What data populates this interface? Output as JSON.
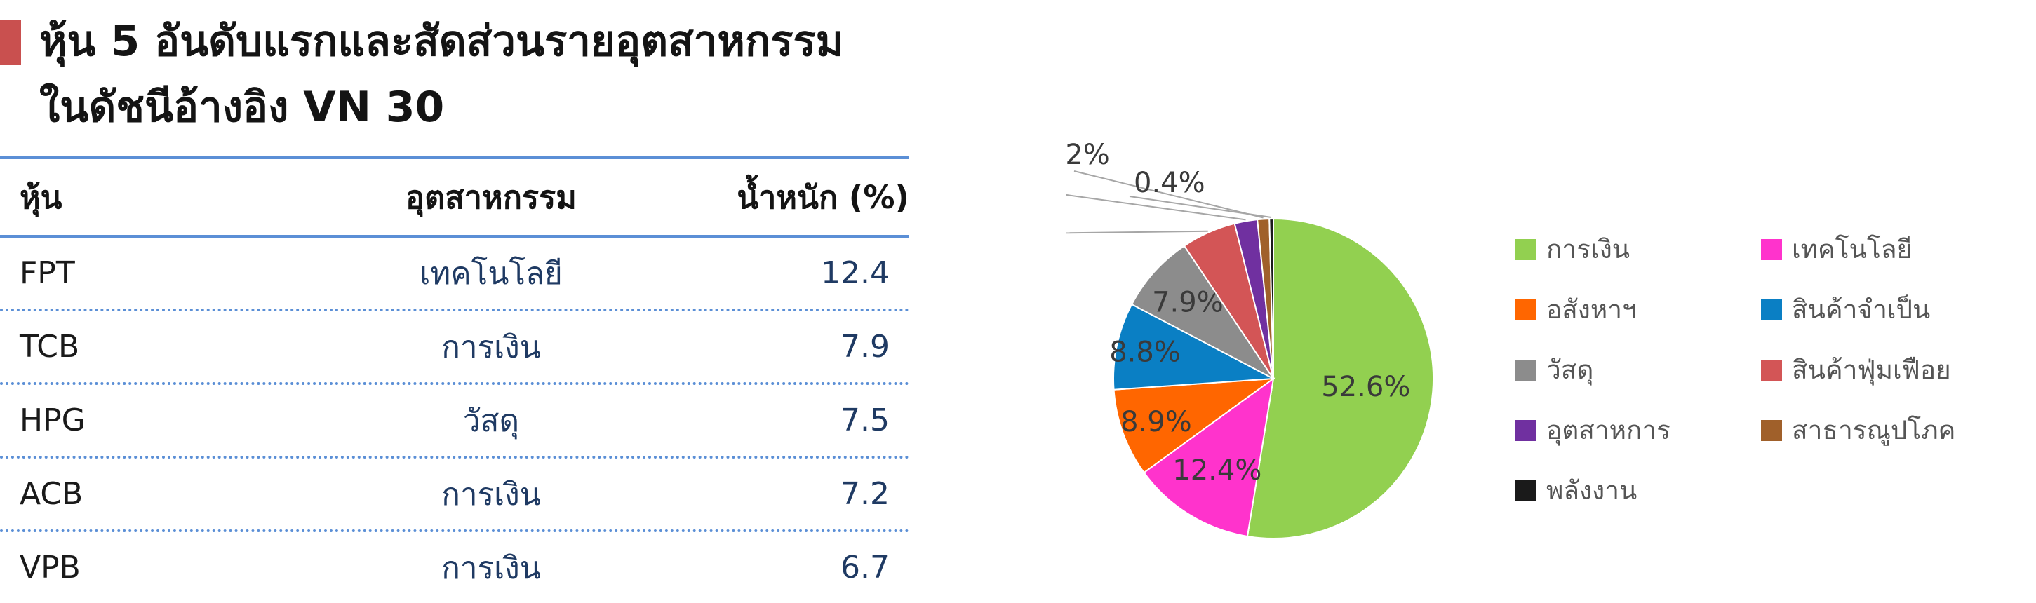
{
  "title": {
    "line1": "หุ้น 5 อันดับแรกและสัดส่วนรายอุตสาหกรรม",
    "line2": "ในดัชนีอ้างอิง VN 30"
  },
  "table": {
    "headers": [
      "หุ้น",
      "อุตสาหกรรม",
      "น้ำหนัก (%)"
    ],
    "rows": [
      [
        "FPT",
        "เทคโนโลยี",
        "12.4"
      ],
      [
        "TCB",
        "การเงิน",
        "7.9"
      ],
      [
        "HPG",
        "วัสดุ",
        "7.5"
      ],
      [
        "ACB",
        "การเงิน",
        "7.2"
      ],
      [
        "VPB",
        "การเงิน",
        "6.7"
      ]
    ]
  },
  "chart_data": {
    "type": "pie",
    "legend_position": "right",
    "slices": [
      {
        "name": "การเงิน",
        "value": 52.6,
        "label": "52.6%",
        "color": "#92d050"
      },
      {
        "name": "เทคโนโลยี",
        "value": 12.4,
        "label": "12.4%",
        "color": "#ff33cc"
      },
      {
        "name": "อสังหาฯ",
        "value": 8.9,
        "label": "8.9%",
        "color": "#ff6600"
      },
      {
        "name": "สินค้าจำเป็น",
        "value": 8.8,
        "label": "8.8%",
        "color": "#0a7fc4"
      },
      {
        "name": "วัสดุ",
        "value": 7.9,
        "label": "7.9%",
        "color": "#8c8c8c"
      },
      {
        "name": "สินค้าฟุ่มเฟือย",
        "value": 5.5,
        "label": "5.5%",
        "color": "#d35556"
      },
      {
        "name": "อุตสาหการ",
        "value": 2.3,
        "label": "2.3%",
        "color": "#7030a0"
      },
      {
        "name": "สาธารณูปโภค",
        "value": 1.2,
        "label": "1.2%",
        "color": "#a0602a"
      },
      {
        "name": "พลังงาน",
        "value": 0.4,
        "label": "0.4%",
        "color": "#1a1a1a"
      }
    ]
  }
}
